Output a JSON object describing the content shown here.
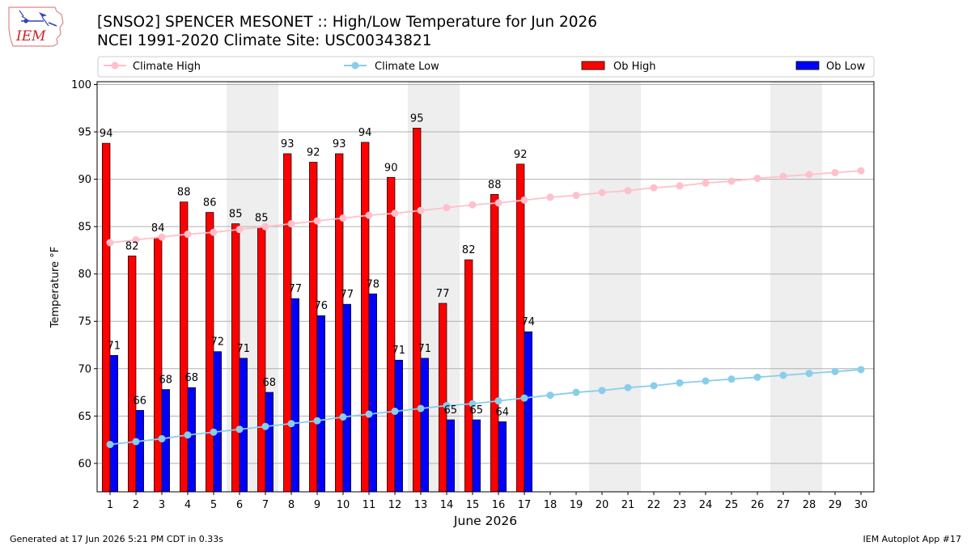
{
  "header": {
    "title": "[SNSO2] SPENCER MESONET :: High/Low Temperature for Jun 2026",
    "subtitle": "NCEI 1991-2020 Climate Site: USC00343821",
    "logo_text": "IEM"
  },
  "footer": {
    "left": "Generated at 17 Jun 2026 5:21 PM CDT in 0.33s",
    "right": "IEM Autoplot App #17"
  },
  "chart_data": {
    "type": "bar",
    "xlabel": "June 2026",
    "ylabel": "Temperature °F",
    "ylim": [
      57,
      100.3
    ],
    "yticks": [
      60,
      65,
      70,
      75,
      80,
      85,
      90,
      95,
      100
    ],
    "grid": true,
    "legend_position": "top",
    "weekend_shaded_days": [
      [
        6,
        7
      ],
      [
        13,
        14
      ],
      [
        20,
        21
      ],
      [
        27,
        28
      ]
    ],
    "days": [
      1,
      2,
      3,
      4,
      5,
      6,
      7,
      8,
      9,
      10,
      11,
      12,
      13,
      14,
      15,
      16,
      17,
      18,
      19,
      20,
      21,
      22,
      23,
      24,
      25,
      26,
      27,
      28,
      29,
      30
    ],
    "series": [
      {
        "name": "Climate High",
        "kind": "line",
        "color": "#ffc0cb",
        "values": [
          83.3,
          83.6,
          83.9,
          84.2,
          84.4,
          84.7,
          85.0,
          85.3,
          85.6,
          85.9,
          86.2,
          86.4,
          86.7,
          87.0,
          87.3,
          87.5,
          87.8,
          88.1,
          88.3,
          88.6,
          88.8,
          89.1,
          89.3,
          89.6,
          89.8,
          90.1,
          90.3,
          90.5,
          90.7,
          90.9
        ]
      },
      {
        "name": "Climate Low",
        "kind": "line",
        "color": "#87ceeb",
        "values": [
          62.0,
          62.3,
          62.6,
          63.0,
          63.3,
          63.6,
          63.9,
          64.2,
          64.5,
          64.9,
          65.2,
          65.5,
          65.8,
          66.1,
          66.3,
          66.6,
          66.9,
          67.2,
          67.5,
          67.7,
          68.0,
          68.2,
          68.5,
          68.7,
          68.9,
          69.1,
          69.3,
          69.5,
          69.7,
          69.9
        ]
      },
      {
        "name": "Ob High",
        "kind": "bar",
        "color": "#ff0000",
        "values": [
          93.8,
          81.9,
          83.8,
          87.6,
          86.5,
          85.3,
          84.9,
          92.7,
          91.8,
          92.7,
          93.9,
          90.2,
          95.4,
          76.9,
          81.5,
          88.4,
          91.6
        ],
        "labels": [
          "94",
          "82",
          "84",
          "88",
          "86",
          "85",
          "85",
          "93",
          "92",
          "93",
          "94",
          "90",
          "95",
          "77",
          "82",
          "88",
          "92"
        ]
      },
      {
        "name": "Ob Low",
        "kind": "bar",
        "color": "#0000ff",
        "values": [
          71.4,
          65.6,
          67.8,
          68.0,
          71.8,
          71.1,
          67.5,
          77.4,
          75.6,
          76.8,
          77.9,
          70.9,
          71.1,
          64.6,
          64.6,
          64.4,
          73.9
        ],
        "labels": [
          "71",
          "66",
          "68",
          "68",
          "72",
          "71",
          "68",
          "77",
          "76",
          "77",
          "78",
          "71",
          "71",
          "65",
          "65",
          "64",
          "74"
        ]
      }
    ]
  }
}
